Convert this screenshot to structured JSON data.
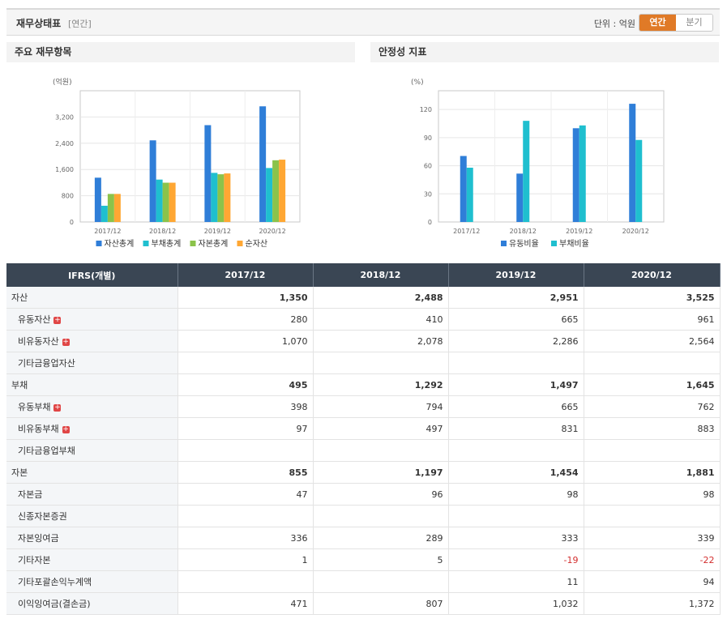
{
  "header": {
    "title": "재무상태표",
    "subtitle": "[연간]",
    "unit_label": "단위 : 억원",
    "toggle_annual": "연간",
    "toggle_quarter": "분기"
  },
  "charts": {
    "left_title": "주요 재무항목",
    "right_title": "안정성 지표"
  },
  "chart_data": [
    {
      "type": "bar",
      "title": "주요 재무항목",
      "ylabel": "(억원)",
      "categories": [
        "2017/12",
        "2018/12",
        "2019/12",
        "2020/12"
      ],
      "ylim": [
        0,
        4000
      ],
      "yticks": [
        0,
        800,
        1600,
        2400,
        3200
      ],
      "ytick_labels": [
        "0",
        "800",
        "1,600",
        "2,400",
        "3,200"
      ],
      "grid": true,
      "legend_position": "bottom",
      "series": [
        {
          "name": "자산총계",
          "color": "#2f7ed8",
          "values": [
            1350,
            2488,
            2951,
            3525
          ]
        },
        {
          "name": "부채총계",
          "color": "#1fbfcf",
          "values": [
            495,
            1292,
            1497,
            1645
          ]
        },
        {
          "name": "자본총계",
          "color": "#8bc34a",
          "values": [
            855,
            1197,
            1454,
            1881
          ]
        },
        {
          "name": "순자산",
          "color": "#ffa733",
          "values": [
            855,
            1197,
            1480,
            1900
          ]
        }
      ]
    },
    {
      "type": "bar",
      "title": "안정성 지표",
      "ylabel": "(%)",
      "categories": [
        "2017/12",
        "2018/12",
        "2019/12",
        "2020/12"
      ],
      "ylim": [
        0,
        140
      ],
      "yticks": [
        0,
        30,
        60,
        90,
        120
      ],
      "ytick_labels": [
        "0",
        "30",
        "60",
        "90",
        "120"
      ],
      "grid": true,
      "legend_position": "bottom",
      "series": [
        {
          "name": "유동비율",
          "color": "#2f7ed8",
          "values": [
            70.4,
            51.6,
            100.0,
            126.1
          ]
        },
        {
          "name": "부채비율",
          "color": "#1fbfcf",
          "values": [
            57.9,
            107.9,
            103.0,
            87.5
          ]
        }
      ]
    }
  ],
  "table": {
    "headers": [
      "IFRS(개별)",
      "2017/12",
      "2018/12",
      "2019/12",
      "2020/12"
    ],
    "rows": [
      {
        "label": "자산",
        "values": [
          "1,350",
          "2,488",
          "2,951",
          "3,525"
        ]
      },
      {
        "label": "유동자산",
        "values": [
          "280",
          "410",
          "665",
          "961"
        ]
      },
      {
        "label": "비유동자산",
        "values": [
          "1,070",
          "2,078",
          "2,286",
          "2,564"
        ]
      },
      {
        "label": "기타금융업자산",
        "values": [
          "",
          "",
          "",
          ""
        ]
      },
      {
        "label": "부채",
        "values": [
          "495",
          "1,292",
          "1,497",
          "1,645"
        ]
      },
      {
        "label": "유동부채",
        "values": [
          "398",
          "794",
          "665",
          "762"
        ]
      },
      {
        "label": "비유동부채",
        "values": [
          "97",
          "497",
          "831",
          "883"
        ]
      },
      {
        "label": "기타금융업부채",
        "values": [
          "",
          "",
          "",
          ""
        ]
      },
      {
        "label": "자본",
        "values": [
          "855",
          "1,197",
          "1,454",
          "1,881"
        ]
      },
      {
        "label": "자본금",
        "values": [
          "47",
          "96",
          "98",
          "98"
        ]
      },
      {
        "label": "신종자본증권",
        "values": [
          "",
          "",
          "",
          ""
        ]
      },
      {
        "label": "자본잉여금",
        "values": [
          "336",
          "289",
          "333",
          "339"
        ]
      },
      {
        "label": "기타자본",
        "values": [
          "1",
          "5",
          "-19",
          "-22"
        ]
      },
      {
        "label": "기타포괄손익누계액",
        "values": [
          "",
          "",
          "11",
          "94"
        ]
      },
      {
        "label": "이익잉여금(결손금)",
        "values": [
          "471",
          "807",
          "1,032",
          "1,372"
        ]
      }
    ]
  }
}
